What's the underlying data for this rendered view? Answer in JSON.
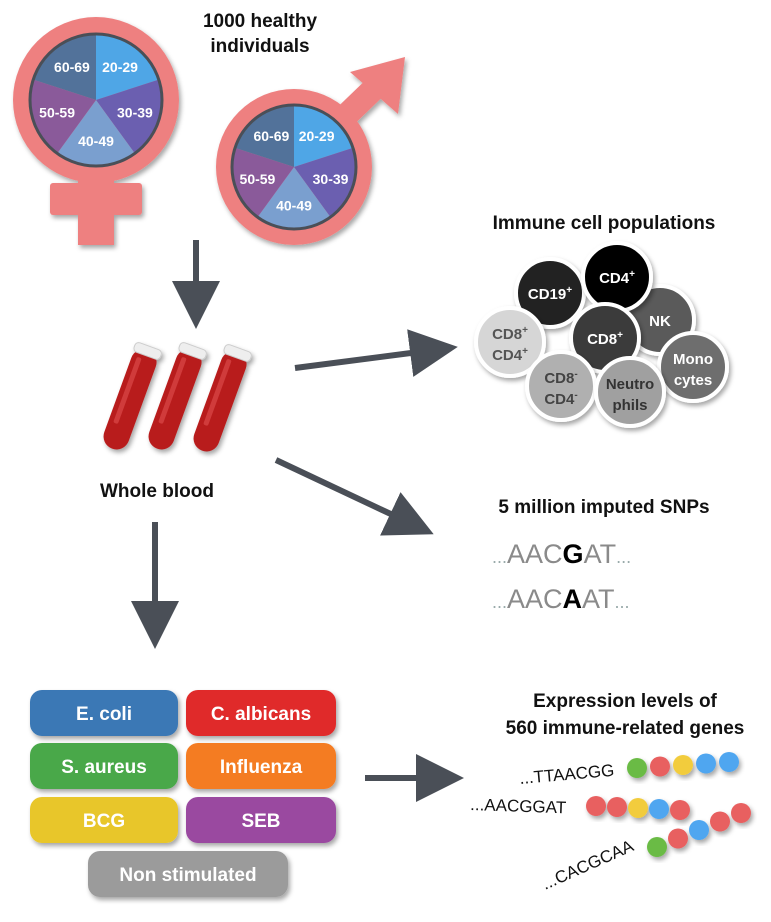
{
  "cohort": {
    "title_line1": "1000 healthy",
    "title_line2": "individuals",
    "age_groups": [
      "20-29",
      "30-39",
      "40-49",
      "50-59",
      "60-69"
    ],
    "age_colors": [
      "#4fa6e6",
      "#6b5fb0",
      "#7a9fcf",
      "#8a5a9a",
      "#52729a"
    ],
    "symbol_color": "#ee8080"
  },
  "sample": {
    "label": "Whole blood"
  },
  "immune": {
    "title": "Immune cell populations",
    "cells": [
      {
        "l1": "CD19",
        "s1": "+",
        "l2": "",
        "s2": "",
        "fill": "#222222",
        "text": "#ffffff"
      },
      {
        "l1": "CD4",
        "s1": "+",
        "l2": "",
        "s2": "",
        "fill": "#050505",
        "text": "#ffffff"
      },
      {
        "l1": "NK",
        "s1": "",
        "l2": "",
        "s2": "",
        "fill": "#5a5a5a",
        "text": "#ffffff"
      },
      {
        "l1": "CD8",
        "s1": "+",
        "l2": "",
        "s2": "",
        "fill": "#3a3a3a",
        "text": "#ffffff"
      },
      {
        "l1": "CD8",
        "s1": "+",
        "l2": "CD4",
        "s2": "+",
        "fill": "#d6d6d6",
        "text": "#555555"
      },
      {
        "l1": "CD8",
        "s1": "-",
        "l2": "CD4",
        "s2": "-",
        "fill": "#b0b0b0",
        "text": "#444444"
      },
      {
        "l1": "Neutro",
        "s1": "",
        "l2": "phils",
        "s2": "",
        "fill": "#a0a0a0",
        "text": "#333333"
      },
      {
        "l1": "Mono",
        "s1": "",
        "l2": "cytes",
        "s2": "",
        "fill": "#6e6e6e",
        "text": "#ffffff"
      }
    ]
  },
  "snps": {
    "title": "5 million imputed SNPs",
    "seq1": {
      "pre": "...",
      "left": "AAC",
      "variant": "G",
      "right": "AT",
      "post": "..."
    },
    "seq2": {
      "pre": "...",
      "left": "AAC",
      "variant": "A",
      "right": "AT",
      "post": "..."
    }
  },
  "stimuli": [
    {
      "label": "E. coli",
      "color": "#3a78b5"
    },
    {
      "label": "C. albicans",
      "color": "#e02a2a"
    },
    {
      "label": "S. aureus",
      "color": "#4aa84a"
    },
    {
      "label": "Influenza",
      "color": "#f47b24"
    },
    {
      "label": "BCG",
      "color": "#e8c62c"
    },
    {
      "label": "SEB",
      "color": "#9a48a0"
    },
    {
      "label": "Non stimulated",
      "color": "#9b9b9b"
    }
  ],
  "expression": {
    "title_line1": "Expression levels of",
    "title_line2": "560 immune-related genes",
    "rows": [
      {
        "seq": "...TTAACGG",
        "beads": [
          "#6bbb44",
          "#e86060",
          "#f2cc3c",
          "#4fa6f0",
          "#4fa6f0"
        ]
      },
      {
        "seq": "...AACGGAT",
        "beads": [
          "#e86060",
          "#e86060",
          "#f2cc3c",
          "#4fa6f0",
          "#e86060"
        ]
      },
      {
        "seq": "...CACGCAA",
        "beads": [
          "#6bbb44",
          "#e86060",
          "#4fa6f0",
          "#e86060",
          "#e86060"
        ]
      }
    ]
  }
}
